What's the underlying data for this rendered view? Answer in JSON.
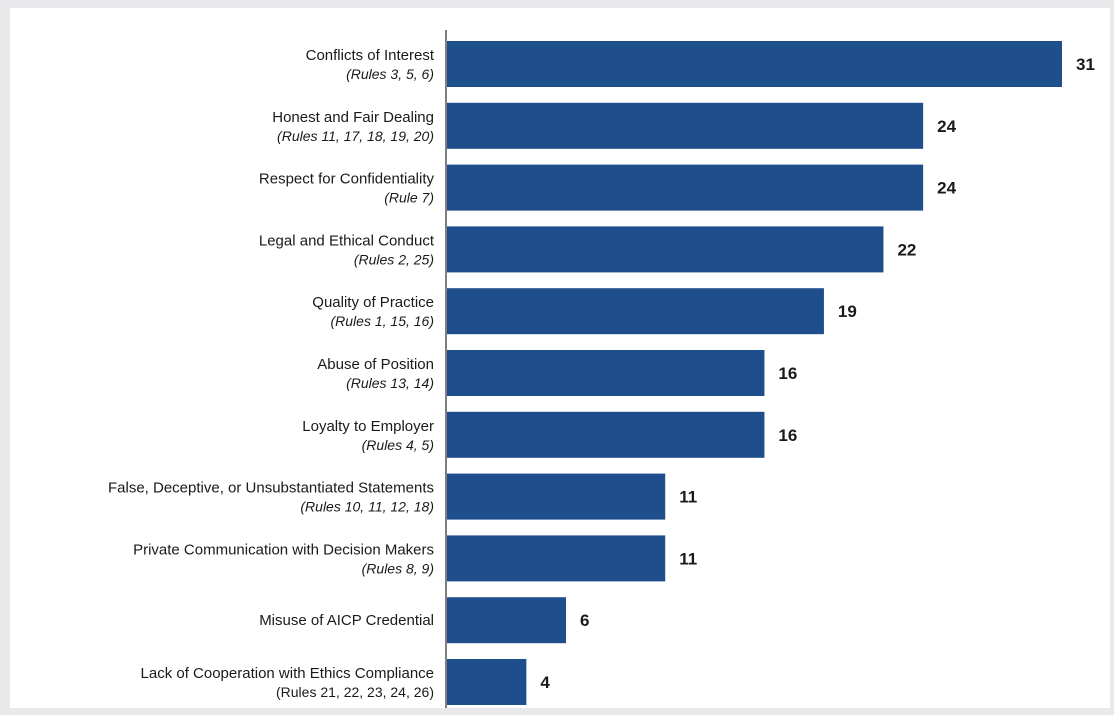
{
  "chart_data": {
    "type": "bar",
    "orientation": "horizontal",
    "title": "",
    "xlabel": "",
    "ylabel": "",
    "xlim": [
      0,
      31
    ],
    "grid": false,
    "legend": "none",
    "bar_color": "#1f4e8c",
    "categories": [
      {
        "label": "Conflicts of Interest",
        "sublabel": "(Rules 3, 5, 6)",
        "italic": true,
        "value": 31
      },
      {
        "label": "Honest and Fair Dealing",
        "sublabel": "(Rules 11, 17, 18, 19, 20)",
        "italic": true,
        "value": 24
      },
      {
        "label": "Respect for Confidentiality",
        "sublabel": "(Rule 7)",
        "italic": true,
        "value": 24
      },
      {
        "label": "Legal and Ethical Conduct",
        "sublabel": "(Rules 2, 25)",
        "italic": true,
        "value": 22
      },
      {
        "label": "Quality of Practice",
        "sublabel": "(Rules 1, 15, 16)",
        "italic": true,
        "value": 19
      },
      {
        "label": "Abuse of Position",
        "sublabel": "(Rules 13, 14)",
        "italic": true,
        "value": 16
      },
      {
        "label": "Loyalty to Employer",
        "sublabel": "(Rules 4, 5)",
        "italic": true,
        "value": 16
      },
      {
        "label": "False, Deceptive, or Unsubstantiated Statements",
        "sublabel": "(Rules 10, 11, 12, 18)",
        "italic": true,
        "value": 11
      },
      {
        "label": "Private Communication with Decision Makers",
        "sublabel": "(Rules 8, 9)",
        "italic": true,
        "value": 11
      },
      {
        "label": "Misuse of AICP Credential",
        "sublabel": "",
        "italic": true,
        "value": 6
      },
      {
        "label": "Lack of Cooperation with Ethics Compliance",
        "sublabel": "(Rules 21, 22, 23, 24, 26)",
        "italic": false,
        "value": 4
      }
    ]
  }
}
